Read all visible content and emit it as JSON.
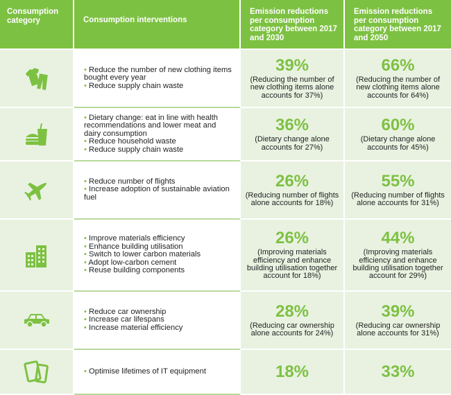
{
  "colors": {
    "accent": "#7dc142",
    "tint": "#e9f2e1",
    "text": "#222222"
  },
  "header": {
    "category": "Consumption category",
    "interventions": "Consumption interventions",
    "col2030": "Emission reductions per consumption category between 2017 and 2030",
    "col2050": "Emission reductions per consumption category between 2017 and 2050"
  },
  "rows": [
    {
      "icon": "clothing-icon",
      "interventions": [
        "Reduce the number of new clothing items bought every year",
        "Reduce supply chain waste"
      ],
      "r2030": {
        "pct": "39%",
        "note": "(Reducing the number of new clothing items alone accounts for 37%)"
      },
      "r2050": {
        "pct": "66%",
        "note": "(Reducing the number of new clothing items alone accounts for 64%)"
      }
    },
    {
      "icon": "food-icon",
      "interventions": [
        "Dietary change: eat in line with health recommendations and lower meat and dairy consumption",
        "Reduce household waste",
        "Reduce supply chain waste"
      ],
      "r2030": {
        "pct": "36%",
        "note": "(Dietary change alone accounts for 27%)"
      },
      "r2050": {
        "pct": "60%",
        "note": "(Dietary change alone accounts for 45%)"
      }
    },
    {
      "icon": "airplane-icon",
      "interventions": [
        "Reduce number of flights",
        "Increase adoption of sustainable aviation fuel"
      ],
      "r2030": {
        "pct": "26%",
        "note": "(Reducing number of flights alone accounts for 18%)"
      },
      "r2050": {
        "pct": "55%",
        "note": "(Reducing number of flights alone accounts for 31%)"
      }
    },
    {
      "icon": "buildings-icon",
      "interventions": [
        "Improve materials efficiency",
        "Enhance building utilisation",
        "Switch to lower carbon materials",
        "Adopt low-carbon cement",
        "Reuse building components"
      ],
      "r2030": {
        "pct": "26%",
        "note": "(Improving materials efficiency and enhance building utilisation together account for 18%)"
      },
      "r2050": {
        "pct": "44%",
        "note": "(Improving materials efficiency and enhance building utilisation together account for 29%)"
      }
    },
    {
      "icon": "car-icon",
      "interventions": [
        "Reduce car ownership",
        "Increase car lifespans",
        "Increase material efficiency"
      ],
      "r2030": {
        "pct": "28%",
        "note": "(Reducing car ownership alone accounts for 24%)"
      },
      "r2050": {
        "pct": "39%",
        "note": "(Reducing car ownership alone accounts for 31%)"
      }
    },
    {
      "icon": "devices-icon",
      "interventions": [
        "Optimise lifetimes of IT equipment"
      ],
      "r2030": {
        "pct": "18%",
        "note": ""
      },
      "r2050": {
        "pct": "33%",
        "note": ""
      }
    }
  ]
}
